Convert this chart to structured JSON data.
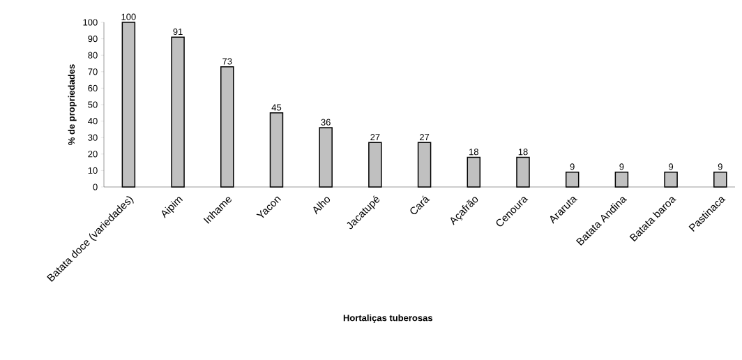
{
  "chart_data": {
    "type": "bar",
    "xlabel": "Hortaliças tuberosas",
    "ylabel": "% de propriedades",
    "categories": [
      "Batata doce (variedades)",
      "Aipim",
      "Inhame",
      "Yacon",
      "Alho",
      "Jacatupé",
      "Cará",
      "Açafrão",
      "Cenoura",
      "Araruta",
      "Batata Andina",
      "Batata baroa",
      "Pastinaca"
    ],
    "values": [
      100,
      91,
      73,
      45,
      36,
      27,
      27,
      18,
      18,
      9,
      9,
      9,
      9
    ],
    "color": "#c0c0c0",
    "ylim": [
      0,
      100
    ],
    "yticks": [
      0,
      10,
      20,
      30,
      40,
      50,
      60,
      70,
      80,
      90,
      100
    ],
    "data_labels": true
  }
}
